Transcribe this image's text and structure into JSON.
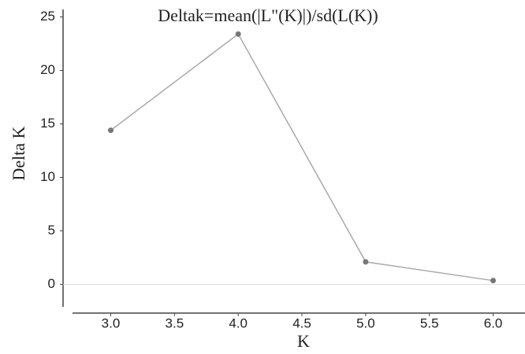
{
  "chart_data": {
    "type": "line",
    "title": "Deltak=mean(|L\"(K)|)/sd(L(K))",
    "x_label": "K",
    "y_label": "Delta K",
    "x": [
      3,
      4,
      5,
      6
    ],
    "series": [
      {
        "name": "Delta K",
        "color": "#aaaaaa",
        "values": [
          14.4,
          23.4,
          2.1,
          0.35
        ]
      }
    ],
    "xlim": [
      2.7,
      6.25
    ],
    "xticks": [
      {
        "value": 3,
        "label": "3.0"
      },
      {
        "value": 3.5,
        "label": "3.5"
      },
      {
        "value": 4,
        "label": "4.0"
      },
      {
        "value": 4.5,
        "label": "4.5"
      },
      {
        "value": 5,
        "label": "5.0"
      },
      {
        "value": 5.5,
        "label": "5.5"
      },
      {
        "value": 6,
        "label": "6.0"
      }
    ],
    "ylim": [
      -2.1,
      25.7
    ],
    "yticks": [
      0,
      5,
      10,
      15,
      20,
      25
    ],
    "reference_line": 0,
    "marker_color": "#777777"
  }
}
